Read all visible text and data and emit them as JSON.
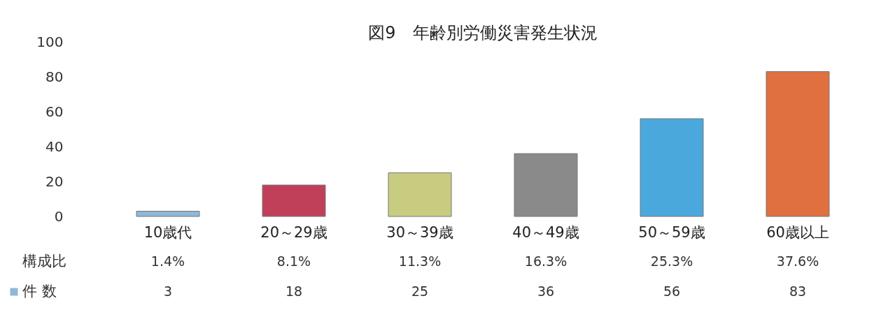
{
  "chart_data": {
    "type": "bar",
    "title": "図9　年齢別労働災害発生状況",
    "categories": [
      "10歳代",
      "20～29歳",
      "30～39歳",
      "40～49歳",
      "50～59歳",
      "60歳以上"
    ],
    "series": [
      {
        "name": "件 数",
        "values": [
          3,
          18,
          25,
          36,
          56,
          83
        ]
      }
    ],
    "colors": [
      "#8fb8d8",
      "#c0405a",
      "#c8cc80",
      "#8a8a8a",
      "#4aa8dc",
      "#e07040"
    ],
    "ylim": [
      0,
      100
    ],
    "yticks": [
      0,
      20,
      40,
      60,
      80,
      100
    ],
    "grid": false,
    "legend": "bottom left",
    "data_labels": true,
    "annotations": [
      "構成比",
      "1.4%",
      "8.1%",
      "11.3%",
      "16.3%",
      "25.3%",
      "37.6%"
    ]
  }
}
